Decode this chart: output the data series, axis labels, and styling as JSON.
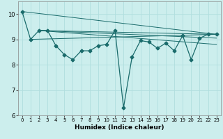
{
  "xlabel": "Humidex (Indice chaleur)",
  "xlim": [
    -0.5,
    23.5
  ],
  "ylim": [
    6,
    10.5
  ],
  "yticks": [
    6,
    7,
    8,
    9,
    10
  ],
  "xticks": [
    0,
    1,
    2,
    3,
    4,
    5,
    6,
    7,
    8,
    9,
    10,
    11,
    12,
    13,
    14,
    15,
    16,
    17,
    18,
    19,
    20,
    21,
    22,
    23
  ],
  "bg_color": "#cceeed",
  "line_color": "#1a6b6b",
  "grid_color": "#b0dede",
  "main_series": {
    "x": [
      0,
      1,
      2,
      3,
      4,
      5,
      6,
      7,
      8,
      9,
      10,
      11,
      12,
      13,
      14,
      15,
      16,
      17,
      18,
      19,
      20,
      21,
      22,
      23
    ],
    "y": [
      10.1,
      9.0,
      9.35,
      9.35,
      8.75,
      8.4,
      8.2,
      8.55,
      8.55,
      8.75,
      8.8,
      9.35,
      6.3,
      8.3,
      8.95,
      8.9,
      8.65,
      8.85,
      8.55,
      9.15,
      8.2,
      9.05,
      9.2,
      9.2
    ]
  },
  "trend_lines": [
    {
      "x": [
        0,
        23
      ],
      "y": [
        10.1,
        9.2
      ]
    },
    {
      "x": [
        1,
        23
      ],
      "y": [
        9.0,
        9.2
      ]
    },
    {
      "x": [
        2,
        23
      ],
      "y": [
        9.35,
        9.2
      ]
    },
    {
      "x": [
        2,
        23
      ],
      "y": [
        9.35,
        9.05
      ]
    },
    {
      "x": [
        2,
        23
      ],
      "y": [
        9.35,
        8.8
      ]
    }
  ]
}
